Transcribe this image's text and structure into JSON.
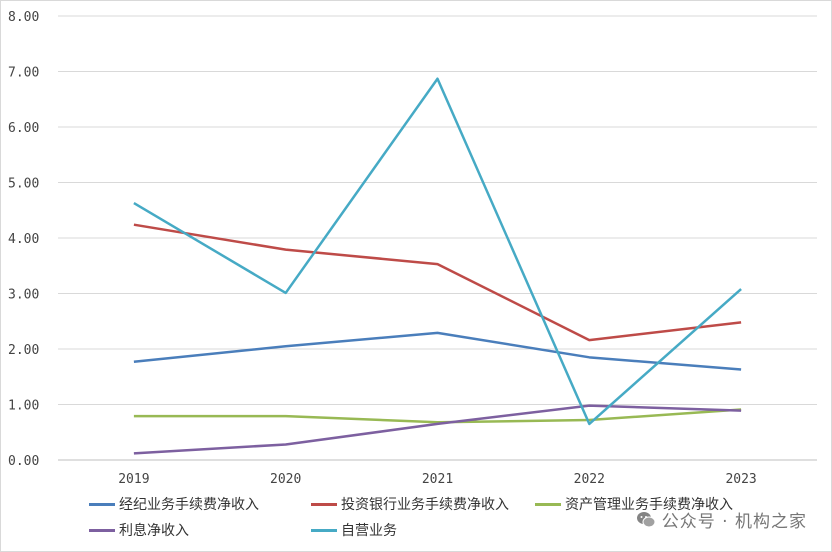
{
  "chart_data": {
    "type": "line",
    "title": "",
    "xlabel": "",
    "ylabel": "",
    "categories": [
      "2019",
      "2020",
      "2021",
      "2022",
      "2023"
    ],
    "ylim": [
      0,
      8
    ],
    "ytick_labels": [
      "0.00",
      "1.00",
      "2.00",
      "3.00",
      "4.00",
      "5.00",
      "6.00",
      "7.00",
      "8.00"
    ],
    "grid": true,
    "legend_position": "bottom",
    "series": [
      {
        "name": "经纪业务手续费净收入",
        "color": "#4a7ebb",
        "values": [
          1.77,
          2.05,
          2.29,
          1.85,
          1.63
        ]
      },
      {
        "name": "投资银行业务手续费净收入",
        "color": "#be4b48",
        "values": [
          4.24,
          3.79,
          3.53,
          2.16,
          2.48
        ]
      },
      {
        "name": "资产管理业务手续费净收入",
        "color": "#98b954",
        "values": [
          0.79,
          0.79,
          0.68,
          0.72,
          0.91
        ]
      },
      {
        "name": "利息净收入",
        "color": "#7d60a0",
        "values": [
          0.12,
          0.28,
          0.65,
          0.98,
          0.89
        ]
      },
      {
        "name": "自营业务",
        "color": "#46aac5",
        "values": [
          4.63,
          3.01,
          6.87,
          0.65,
          3.08
        ]
      }
    ]
  },
  "watermark": {
    "text": "公众号 · 机构之家",
    "icon": "wechat-icon"
  }
}
